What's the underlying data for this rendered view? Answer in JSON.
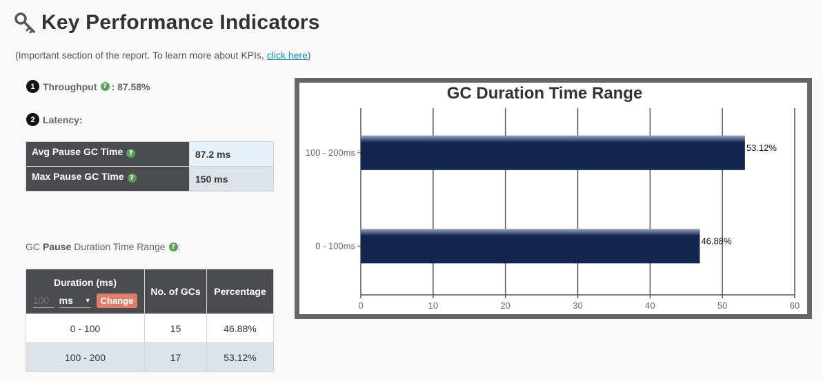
{
  "header": {
    "title": "Key Performance Indicators",
    "icon": "key-icon"
  },
  "intro": {
    "text": "(Important section of the report. To learn more about KPIs, ",
    "link": "click here",
    "suffix": ")"
  },
  "throughput": {
    "number": "1",
    "label": "Throughput",
    "value": ": 87.58%"
  },
  "latency": {
    "number": "2",
    "label": "Latency:",
    "rows": [
      {
        "label": "Avg Pause GC Time",
        "value": "87.2 ms"
      },
      {
        "label": "Max Pause GC Time",
        "value": "150 ms"
      }
    ]
  },
  "range": {
    "title_prefix": "GC",
    "title_bold": "Pause",
    "title_suffix": "Duration Time Range",
    "colon": ":",
    "columns": {
      "duration": "Duration (ms)",
      "count": "No. of GCs",
      "percentage": "Percentage"
    },
    "duration_placeholder": "100",
    "unit": "ms",
    "change_label": "Change",
    "rows": [
      {
        "range": "0 - 100",
        "count": "15",
        "percentage": "46.88%"
      },
      {
        "range": "100 - 200",
        "count": "17",
        "percentage": "53.12%"
      }
    ]
  },
  "chart_data": {
    "type": "bar",
    "orientation": "horizontal",
    "title": "GC Duration Time Range",
    "categories": [
      "100 - 200ms",
      "0 - 100ms"
    ],
    "values": [
      53.12,
      46.88
    ],
    "data_labels": [
      "53.12%",
      "46.88%"
    ],
    "xlim": [
      0,
      60
    ],
    "xticks": [
      0,
      10,
      20,
      30,
      40,
      50,
      60
    ],
    "grid": true,
    "bar_color": "#13264f"
  }
}
